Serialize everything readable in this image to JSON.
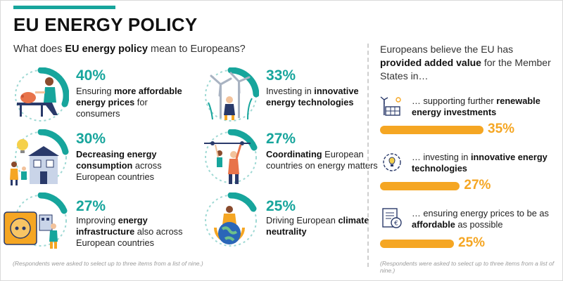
{
  "header": {
    "title": "EU ENERGY POLICY",
    "question_pre": "What does ",
    "question_bold": "EU energy policy",
    "question_post": " mean to Europeans?"
  },
  "items": [
    {
      "percent": "40%",
      "value": 40,
      "pre": "Ensuring ",
      "bold": "more affordable energy prices",
      "post": " for consumers",
      "icon": "person-with-piggy-bank-icon"
    },
    {
      "percent": "33%",
      "value": 33,
      "pre": "Investing in ",
      "bold": "innovative energy technologies",
      "post": "",
      "icon": "wind-turbines-icon"
    },
    {
      "percent": "30%",
      "value": 30,
      "pre": "",
      "bold": "Decreasing energy consumption",
      "post": " across European countries",
      "icon": "house-lightbulb-icon"
    },
    {
      "percent": "27%",
      "value": 27,
      "pre": "",
      "bold": "Coordinating",
      "post": " European countries on energy matters",
      "icon": "workers-power-line-icon"
    },
    {
      "percent": "27%",
      "value": 27,
      "pre": "Improving ",
      "bold": "energy infrastructure",
      "post": " also across European countries",
      "icon": "power-socket-icon"
    },
    {
      "percent": "25%",
      "value": 25,
      "pre": "Driving European ",
      "bold": "climate neutrality",
      "post": "",
      "icon": "person-holding-globe-icon"
    }
  ],
  "right": {
    "heading_pre": "Europeans believe the EU has ",
    "heading_bold": "provided added value",
    "heading_post": " for the Member States in…",
    "items": [
      {
        "pre": "… supporting further ",
        "bold": "renewable energy investments",
        "post": "",
        "percent": "35%",
        "value": 35,
        "icon": "solar-wind-icon"
      },
      {
        "pre": "… investing in ",
        "bold": "innovative energy technologies",
        "post": "",
        "percent": "27%",
        "value": 27,
        "icon": "lightbulb-gear-icon"
      },
      {
        "pre": "… ensuring energy prices to be as ",
        "bold": "affordable",
        "post": " as possible",
        "percent": "25%",
        "value": 25,
        "icon": "euro-bill-icon"
      }
    ]
  },
  "notes": {
    "left": "(Respondents were asked to select up to three items from a list of nine.)",
    "right": "(Respondents were asked to select up to three items from a list of nine.)"
  },
  "colors": {
    "teal": "#17a59c",
    "orange": "#f5a623",
    "ring_track": "#9fd9d4"
  }
}
